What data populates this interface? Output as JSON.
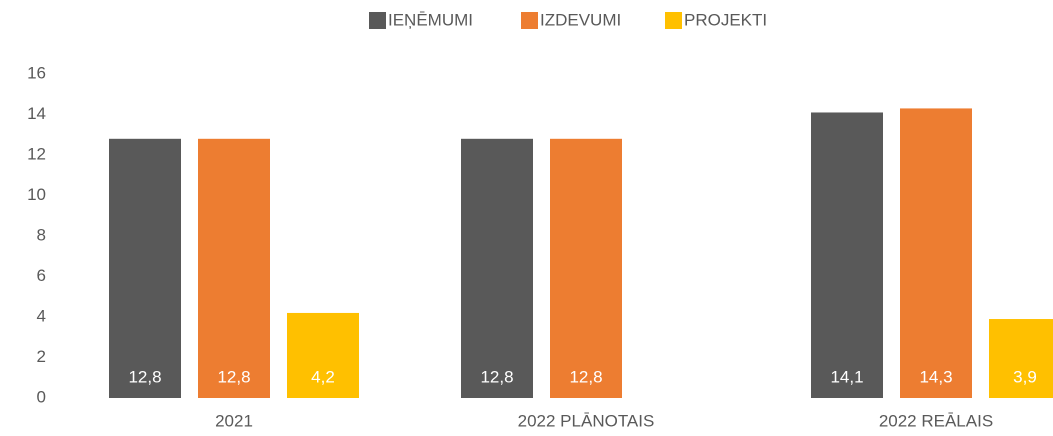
{
  "chart_data": {
    "type": "bar",
    "categories": [
      "2021",
      "2022 PLĀNOTAIS",
      "2022 REĀLAIS"
    ],
    "series": [
      {
        "name": "IEŅĒMUMI",
        "color": "#595959",
        "values": [
          12.8,
          12.8,
          14.1
        ],
        "value_labels": [
          "12,8",
          "12,8",
          "14,1"
        ]
      },
      {
        "name": "IZDEVUMI",
        "color": "#ed7d31",
        "values": [
          12.8,
          12.8,
          14.3
        ],
        "value_labels": [
          "12,8",
          "12,8",
          "14,3"
        ]
      },
      {
        "name": "PROJEKTI",
        "color": "#ffc000",
        "values": [
          4.2,
          null,
          3.9
        ],
        "value_labels": [
          "4,2",
          null,
          "3,9"
        ]
      }
    ],
    "ylim": [
      0,
      16
    ],
    "yticks": [
      0,
      2,
      4,
      6,
      8,
      10,
      12,
      14,
      16
    ],
    "grid": false,
    "legend": "top"
  }
}
